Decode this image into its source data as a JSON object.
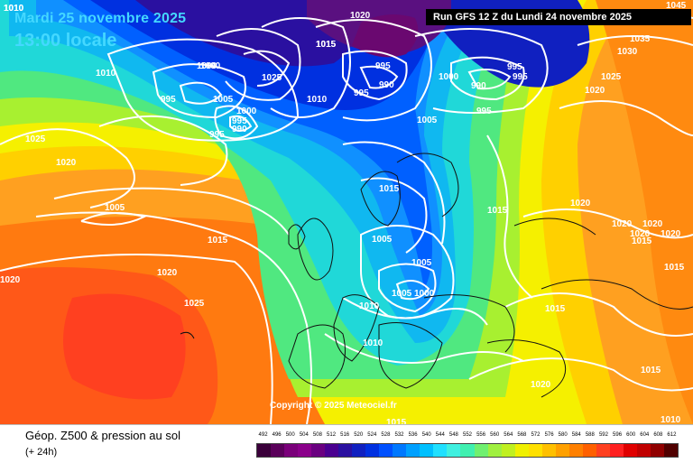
{
  "header": {
    "date": "Mardi 25 novembre 2025",
    "time": "13:00 locale",
    "run": "Run GFS 12 Z du Lundi 24 novembre 2025"
  },
  "footer": {
    "parameter": "Géop. Z500 & pression au sol",
    "lead_time": "(+ 24h)",
    "copyright": "Copyright © 2025 Meteociel.fr"
  },
  "legend": {
    "unit_values": [
      "492",
      "496",
      "500",
      "504",
      "508",
      "512",
      "516",
      "520",
      "524",
      "528",
      "532",
      "536",
      "540",
      "544",
      "548",
      "552",
      "556",
      "560",
      "564",
      "568",
      "572",
      "576",
      "580",
      "584",
      "588",
      "592",
      "596",
      "600",
      "604",
      "608",
      "612"
    ],
    "colors": [
      "#3a003a",
      "#5a005a",
      "#7a007a",
      "#8a008a",
      "#6a0080",
      "#4a0090",
      "#2a10a0",
      "#1020c0",
      "#0030e0",
      "#0050ff",
      "#0078ff",
      "#00a0ff",
      "#00c0ff",
      "#20e0ff",
      "#40f0e0",
      "#40f0b0",
      "#70f070",
      "#a0f040",
      "#c0f020",
      "#f0f000",
      "#ffe000",
      "#ffc000",
      "#ffa000",
      "#ff8000",
      "#ff6000",
      "#ff4020",
      "#ff2020",
      "#e00000",
      "#c00000",
      "#900000",
      "#500000"
    ]
  },
  "pressure_labels": [
    {
      "text": "1010"
    },
    {
      "text": "1015"
    },
    {
      "text": "1020"
    },
    {
      "text": "1045"
    },
    {
      "text": "1035"
    },
    {
      "text": "1030"
    },
    {
      "text": "1025"
    },
    {
      "text": "1020"
    },
    {
      "text": "1000"
    },
    {
      "text": "1015"
    },
    {
      "text": "995"
    },
    {
      "text": "990"
    },
    {
      "text": "995"
    },
    {
      "text": "1000"
    },
    {
      "text": "990"
    },
    {
      "text": "995"
    },
    {
      "text": "995"
    },
    {
      "text": "995"
    },
    {
      "text": "1005"
    },
    {
      "text": "1010"
    },
    {
      "text": "1000"
    },
    {
      "text": "1025"
    },
    {
      "text": "1010"
    },
    {
      "text": "1005"
    },
    {
      "text": "1000"
    },
    {
      "text": "995"
    },
    {
      "text": "990"
    },
    {
      "text": "995"
    },
    {
      "text": "995"
    },
    {
      "text": "1010"
    },
    {
      "text": "1025"
    },
    {
      "text": "1020"
    },
    {
      "text": "1005"
    },
    {
      "text": "1015"
    },
    {
      "text": "1020"
    },
    {
      "text": "1025"
    },
    {
      "text": "1020"
    },
    {
      "text": "1015"
    },
    {
      "text": "1015"
    },
    {
      "text": "1005"
    },
    {
      "text": "1005"
    },
    {
      "text": "1005"
    },
    {
      "text": "1000"
    },
    {
      "text": "1010"
    },
    {
      "text": "1010"
    },
    {
      "text": "1015"
    },
    {
      "text": "1020"
    },
    {
      "text": "1020"
    },
    {
      "text": "1020"
    },
    {
      "text": "1020"
    },
    {
      "text": "1015"
    },
    {
      "text": "1015"
    },
    {
      "text": "1015"
    },
    {
      "text": "1020"
    },
    {
      "text": "1010"
    },
    {
      "text": "1015"
    },
    {
      "text": "1020"
    }
  ]
}
